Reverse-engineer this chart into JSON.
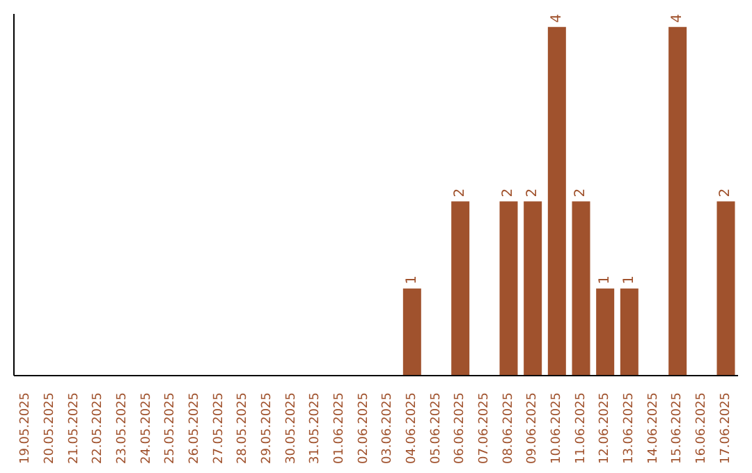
{
  "chart_data": {
    "type": "bar",
    "categories": [
      "19.05.2025",
      "20.05.2025",
      "21.05.2025",
      "22.05.2025",
      "23.05.2025",
      "24.05.2025",
      "25.05.2025",
      "26.05.2025",
      "27.05.2025",
      "28.05.2025",
      "29.05.2025",
      "30.05.2025",
      "31.05.2025",
      "01.06.2025",
      "02.06.2025",
      "03.06.2025",
      "04.06.2025",
      "05.06.2025",
      "06.06.2025",
      "07.06.2025",
      "08.06.2025",
      "09.06.2025",
      "10.06.2025",
      "11.06.2025",
      "12.06.2025",
      "13.06.2025",
      "14.06.2025",
      "15.06.2025",
      "16.06.2025",
      "17.06.2025"
    ],
    "values": [
      null,
      null,
      null,
      null,
      null,
      null,
      null,
      null,
      null,
      null,
      null,
      null,
      null,
      null,
      null,
      null,
      1,
      null,
      2,
      null,
      2,
      2,
      4,
      2,
      1,
      1,
      null,
      4,
      null,
      2
    ],
    "data_labels": true,
    "color": "#a0522d",
    "ylim": [
      0,
      4.15
    ],
    "tick_labels": "x"
  }
}
